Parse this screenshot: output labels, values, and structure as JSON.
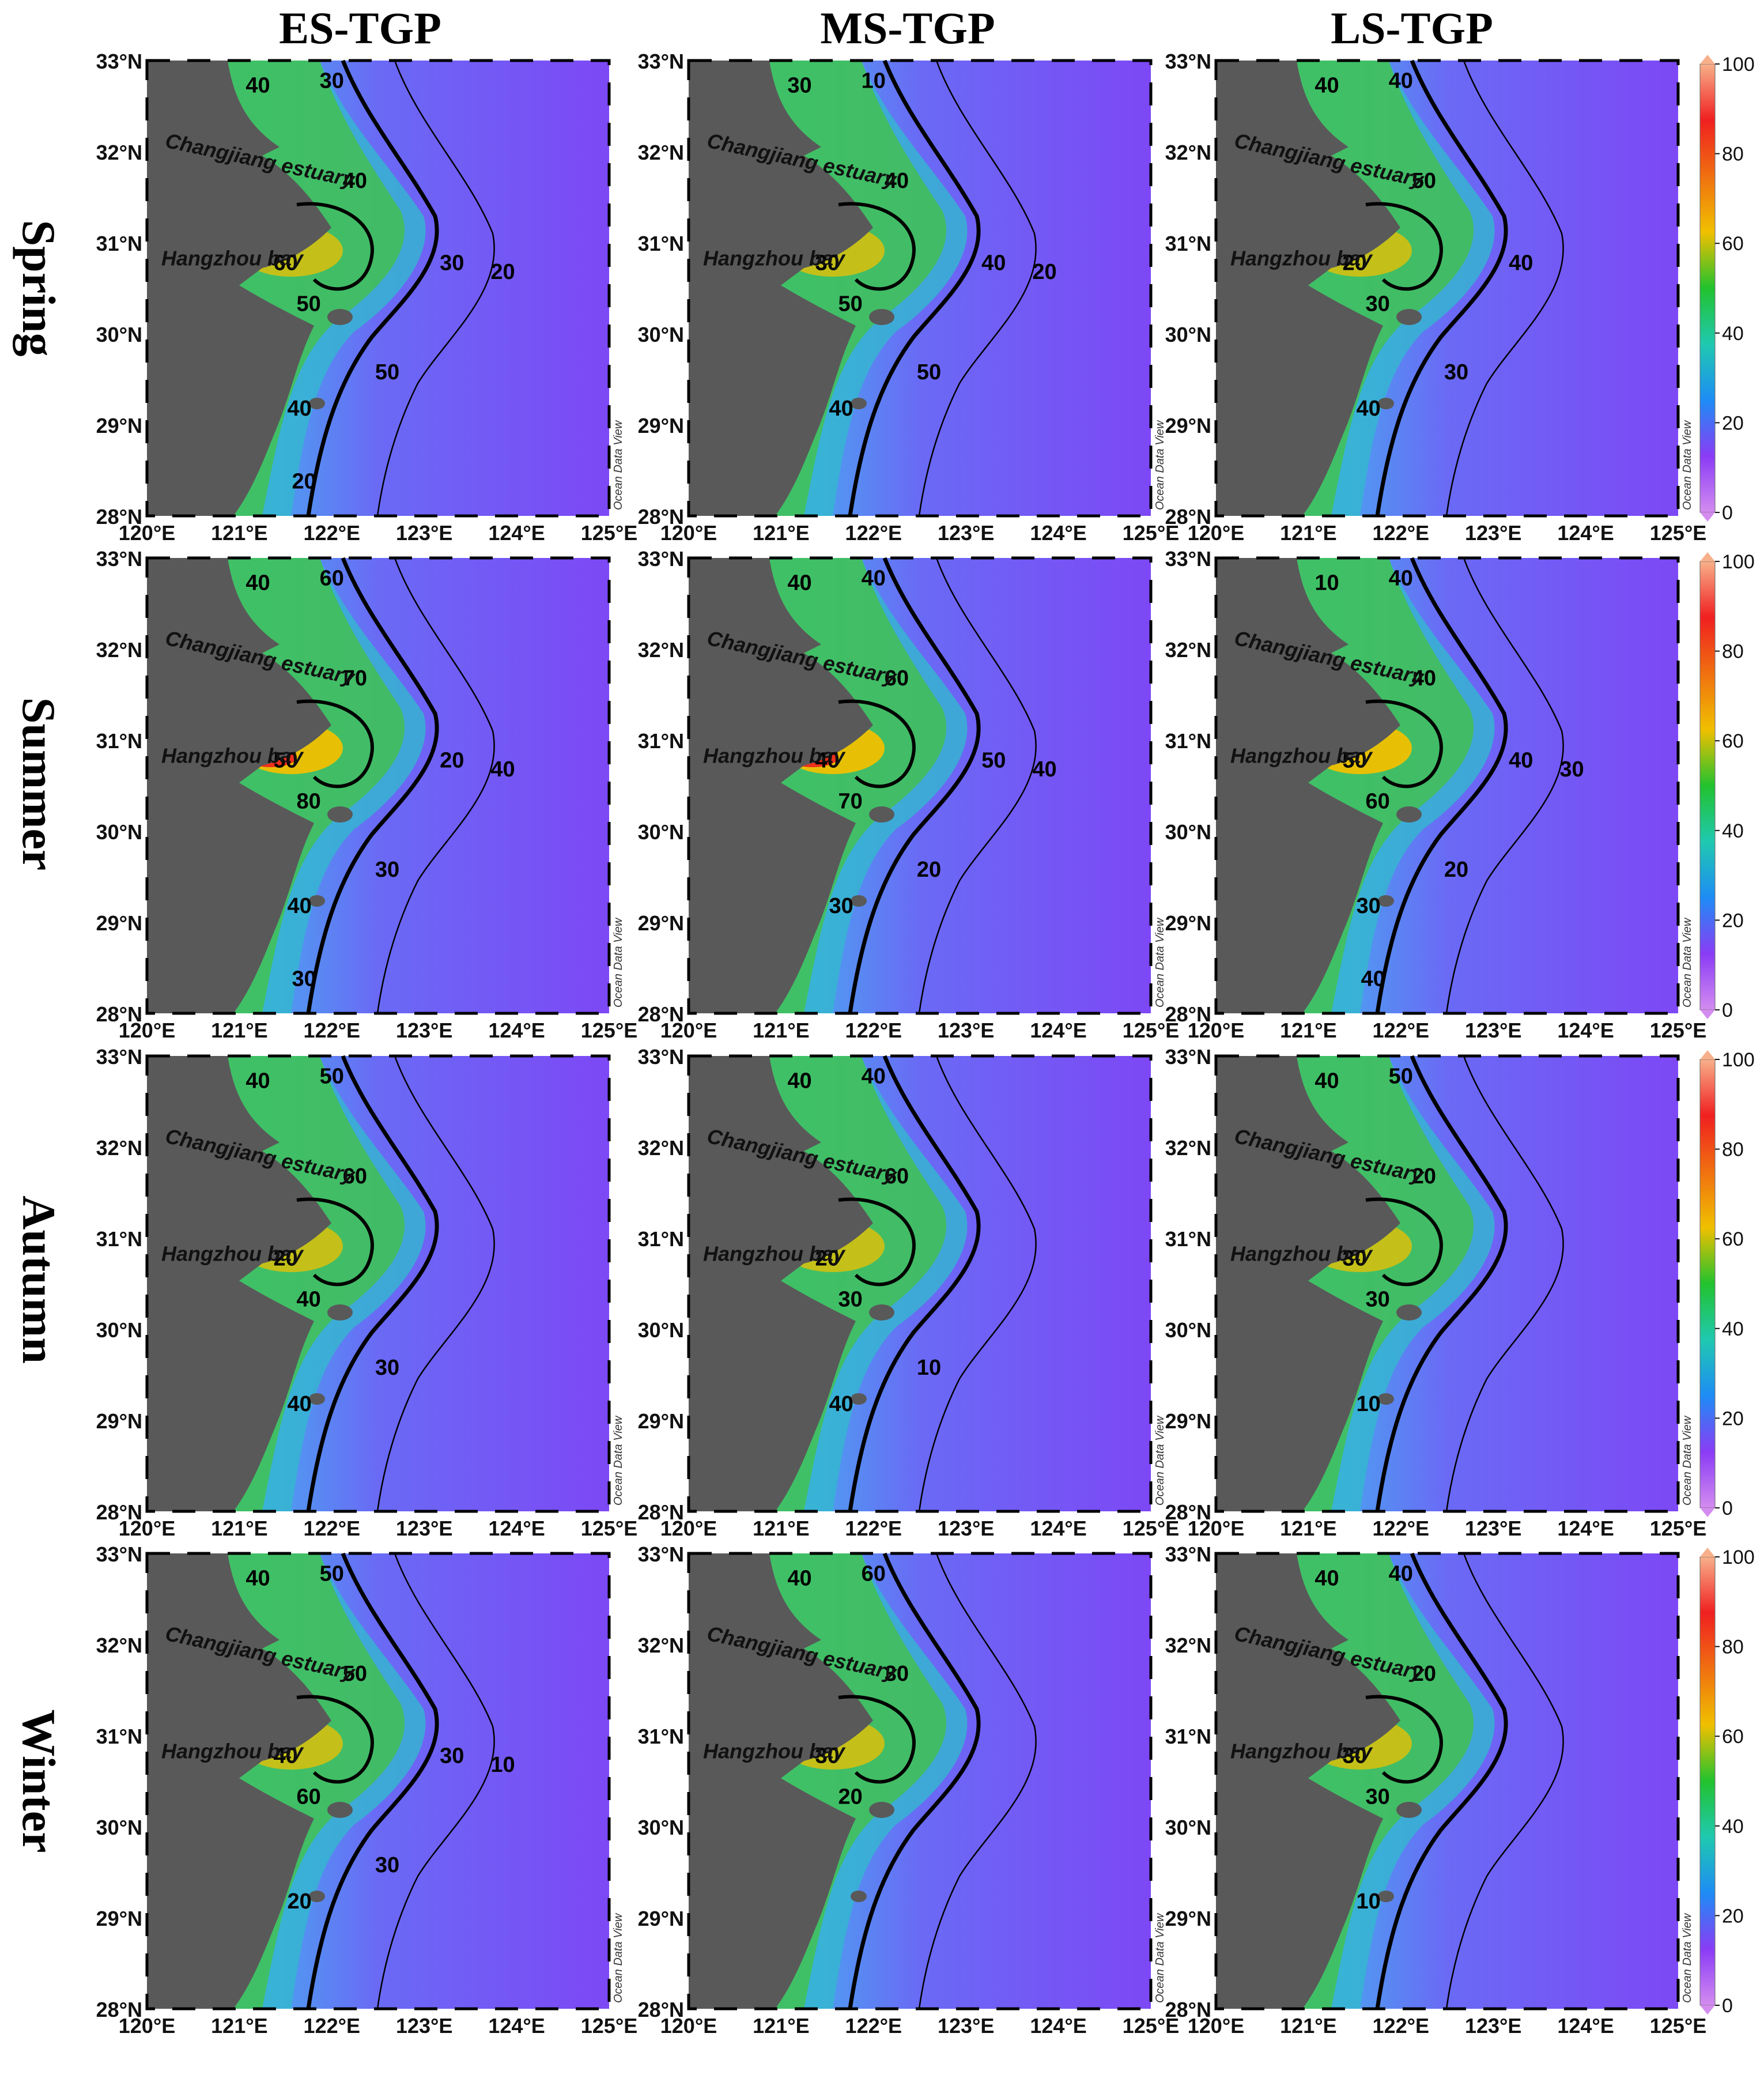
{
  "columns": [
    "ES-TGP",
    "MS-TGP",
    "LS-TGP"
  ],
  "rows": [
    "Spring",
    "Summer",
    "Autumn",
    "Winter"
  ],
  "lat_ticks": [
    "28°N",
    "29°N",
    "30°N",
    "31°N",
    "32°N",
    "33°N"
  ],
  "lon_ticks": [
    "120°E",
    "121°E",
    "122°E",
    "123°E",
    "124°E",
    "125°E"
  ],
  "places": {
    "estuary": "Changjiang estuary",
    "bay": "Hangzhou bay"
  },
  "watermark": "Ocean Data View",
  "colorbar": {
    "min": 0,
    "max": 100,
    "ticks": [
      "0",
      "20",
      "40",
      "60",
      "80",
      "100"
    ],
    "colors": [
      "#d48cf0",
      "#8a3cf5",
      "#1e8cf5",
      "#1fc9b0",
      "#22c22e",
      "#f0c000",
      "#f07010",
      "#f02020",
      "#f8b08a"
    ]
  },
  "colors": {
    "land": "#595959",
    "offshore": "#7b4bf5",
    "coastal": "#3fc25a",
    "nearshore": "#33b8d0"
  },
  "panels": [
    [
      {
        "labels": [
          "40",
          "30",
          "40",
          "50",
          "60",
          "40",
          "50",
          "30",
          "20",
          "20"
        ]
      },
      {
        "labels": [
          "30",
          "10",
          "40",
          "50",
          "30",
          "40",
          "50",
          "40",
          "20"
        ]
      },
      {
        "labels": [
          "40",
          "40",
          "50",
          "30",
          "20",
          "40",
          "30",
          "40"
        ]
      }
    ],
    [
      {
        "labels": [
          "40",
          "60",
          "70",
          "80",
          "50",
          "40",
          "30",
          "20",
          "40",
          "30"
        ]
      },
      {
        "labels": [
          "40",
          "40",
          "60",
          "70",
          "40",
          "30",
          "20",
          "50",
          "40"
        ]
      },
      {
        "labels": [
          "10",
          "40",
          "40",
          "60",
          "50",
          "30",
          "20",
          "40",
          "30",
          "40"
        ]
      }
    ],
    [
      {
        "labels": [
          "40",
          "50",
          "60",
          "40",
          "20",
          "40",
          "30"
        ]
      },
      {
        "labels": [
          "40",
          "40",
          "60",
          "30",
          "20",
          "40",
          "10"
        ]
      },
      {
        "labels": [
          "40",
          "50",
          "20",
          "30",
          "30",
          "10"
        ]
      }
    ],
    [
      {
        "labels": [
          "40",
          "50",
          "50",
          "60",
          "40",
          "20",
          "30",
          "30",
          "10"
        ]
      },
      {
        "labels": [
          "40",
          "60",
          "30",
          "20",
          "30"
        ]
      },
      {
        "labels": [
          "40",
          "40",
          "20",
          "30",
          "30",
          "10"
        ]
      }
    ]
  ]
}
